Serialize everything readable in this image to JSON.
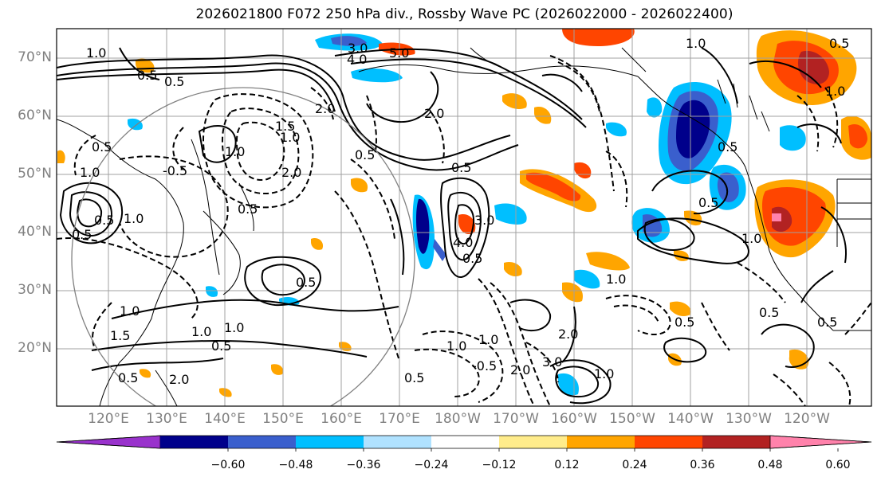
{
  "title": "2026021800 F072 250 hPa div., Rossby Wave PC (2026022000 - 2026022400)",
  "lat_labels": [
    "70°N",
    "60°N",
    "50°N",
    "40°N",
    "30°N",
    "20°N"
  ],
  "lon_labels": [
    "120°E",
    "130°E",
    "140°E",
    "150°E",
    "160°E",
    "170°E",
    "180°W",
    "170°W",
    "160°W",
    "150°W",
    "140°W",
    "130°W",
    "120°W"
  ],
  "colorbar": {
    "colors": [
      "#9932CC",
      "#00008B",
      "#3A5FCD",
      "#00BFFF",
      "#B0E2FF",
      "#FFFFFF",
      "#FFEC8B",
      "#FFA500",
      "#FF4500",
      "#B22222",
      "#FF82AB"
    ],
    "labels": [
      "−0.60",
      "−0.48",
      "−0.36",
      "−0.24",
      "−0.12",
      "0.12",
      "0.24",
      "0.36",
      "0.48",
      "0.60"
    ]
  },
  "contour_labels": [
    "1.0",
    "0.5",
    "1.0",
    "0.5",
    "0.5",
    "1.0",
    "0.5",
    "0.5",
    "-0.5",
    "1.5",
    "1.0",
    "2.0",
    "0.5",
    "1.0",
    "0.5",
    "2.0",
    "0.5",
    "3.0",
    "2.0",
    "4.0",
    "3.0",
    "0.5",
    "1.0",
    "0.5",
    "1.0",
    "0.5",
    "1.0",
    "1.5",
    "1.0",
    "0.5",
    "2.0",
    "0.5",
    "-0.5",
    "1.0",
    "2.0",
    "3.0",
    "2.0",
    "1.0",
    "1.0",
    "1.0",
    "0.5",
    "0.5",
    "1.0",
    "0.5",
    "4.0",
    "5.0",
    "0.5",
    "0.5",
    "0.5",
    "1.0"
  ],
  "colors": {
    "grid": "#a0a0a0",
    "axis_label": "#808080",
    "contour": "#000000",
    "coast": "#000000",
    "circle": "#808080"
  }
}
